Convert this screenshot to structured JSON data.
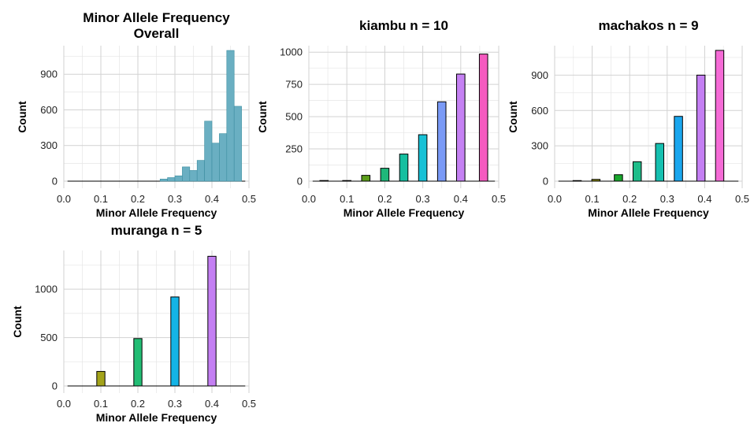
{
  "chart_data": [
    {
      "type": "bar",
      "title_lines": [
        "Minor Allele Frequency",
        "Overall"
      ],
      "xlabel": "Minor Allele Frequency",
      "ylabel": "Count",
      "xlim": [
        0,
        0.5
      ],
      "ylim": [
        0,
        1140
      ],
      "x_ticks": [
        "0.0",
        "0.1",
        "0.2",
        "0.3",
        "0.4",
        "0.5"
      ],
      "y_ticks": [
        0,
        300,
        600,
        900
      ],
      "bar_width": 0.02,
      "bar_color": "#6aafc2",
      "x": [
        0.01,
        0.03,
        0.05,
        0.07,
        0.09,
        0.11,
        0.13,
        0.15,
        0.17,
        0.19,
        0.21,
        0.23,
        0.25,
        0.27,
        0.29,
        0.31,
        0.33,
        0.35,
        0.37,
        0.39,
        0.41,
        0.43,
        0.45,
        0.47,
        0.49
      ],
      "values": [
        0,
        0,
        0,
        0,
        0,
        0,
        0,
        0,
        0,
        0,
        0,
        0,
        0,
        18,
        30,
        45,
        120,
        90,
        175,
        505,
        320,
        400,
        1100,
        630,
        0
      ]
    },
    {
      "type": "bar",
      "title_lines": [
        "kiambu n = 10"
      ],
      "xlabel": "Minor Allele Frequency",
      "ylabel": "Count",
      "xlim": [
        0,
        0.5
      ],
      "ylim": [
        0,
        1050
      ],
      "x_ticks": [
        "0.0",
        "0.1",
        "0.2",
        "0.3",
        "0.4",
        "0.5"
      ],
      "y_ticks": [
        0,
        250,
        500,
        750,
        1000
      ],
      "bar_width": 0.022,
      "x": [
        0.04,
        0.1,
        0.15,
        0.2,
        0.25,
        0.3,
        0.35,
        0.4,
        0.46
      ],
      "values": [
        5,
        5,
        45,
        100,
        210,
        360,
        615,
        830,
        985
      ],
      "colors": [
        "#000000",
        "#000000",
        "#5b9e1a",
        "#1fb87a",
        "#15bfa0",
        "#18c1d6",
        "#7a9af6",
        "#c581f3",
        "#f55ac0"
      ]
    },
    {
      "type": "bar",
      "title_lines": [
        "machakos n = 9"
      ],
      "xlabel": "Minor Allele Frequency",
      "ylabel": "Count",
      "xlim": [
        0,
        0.5
      ],
      "ylim": [
        0,
        1150
      ],
      "x_ticks": [
        "0.0",
        "0.1",
        "0.2",
        "0.3",
        "0.4",
        "0.5"
      ],
      "y_ticks": [
        0,
        300,
        600,
        900
      ],
      "bar_width": 0.022,
      "x": [
        0.06,
        0.11,
        0.17,
        0.22,
        0.28,
        0.33,
        0.39,
        0.44
      ],
      "values": [
        5,
        15,
        55,
        165,
        320,
        550,
        900,
        1110
      ],
      "colors": [
        "#000000",
        "#8a8a12",
        "#18a62c",
        "#1fbd8a",
        "#16c0b0",
        "#1aa6ee",
        "#c47ff3",
        "#f56bd6"
      ]
    },
    {
      "type": "bar",
      "title_lines": [
        "muranga n = 5"
      ],
      "xlabel": "Minor Allele Frequency",
      "ylabel": "Count",
      "xlim": [
        0,
        0.5
      ],
      "ylim": [
        0,
        1400
      ],
      "x_ticks": [
        "0.0",
        "0.1",
        "0.2",
        "0.3",
        "0.4",
        "0.5"
      ],
      "y_ticks": [
        0,
        500,
        1000
      ],
      "bar_width": 0.022,
      "x": [
        0.1,
        0.2,
        0.3,
        0.4
      ],
      "values": [
        150,
        490,
        920,
        1340
      ],
      "colors": [
        "#a3a31a",
        "#22bd74",
        "#14b4e6",
        "#c47ff3"
      ]
    }
  ]
}
